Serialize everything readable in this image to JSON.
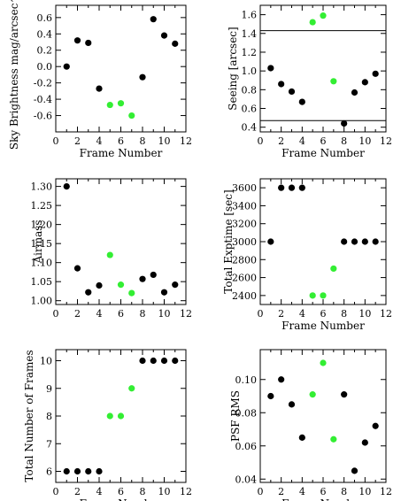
{
  "chart_data": [
    {
      "type": "scatter",
      "xlabel": "Frame Number",
      "ylabel": "Sky Brightness mag/arcsec^2",
      "xlim": [
        0,
        12
      ],
      "ylim": [
        -0.8,
        0.75
      ],
      "xticks": [
        0,
        2,
        4,
        6,
        8,
        10,
        12
      ],
      "yticks": [
        -0.6,
        -0.4,
        -0.2,
        0.0,
        0.2,
        0.4,
        0.6
      ],
      "ytick_labels": [
        "-0.6",
        "-0.4",
        "-0.2",
        "0.0",
        "0.2",
        "0.4",
        "0.6"
      ],
      "x": [
        1,
        2,
        3,
        4,
        5,
        6,
        7,
        8,
        9,
        10,
        11
      ],
      "y": [
        0.0,
        0.32,
        0.29,
        -0.27,
        -0.47,
        -0.45,
        -0.6,
        -0.13,
        0.58,
        0.38,
        0.28
      ],
      "colors": [
        "#000000",
        "#000000",
        "#000000",
        "#000000",
        "#33ee33",
        "#33ee33",
        "#33ee33",
        "#000000",
        "#000000",
        "#000000",
        "#000000"
      ],
      "hlines": [],
      "grid": false
    },
    {
      "type": "scatter",
      "xlabel": "Frame Number",
      "ylabel": "Seeing [arcsec]",
      "xlim": [
        0,
        12
      ],
      "ylim": [
        0.35,
        1.7
      ],
      "xticks": [
        0,
        2,
        4,
        6,
        8,
        10,
        12
      ],
      "yticks": [
        0.4,
        0.6,
        0.8,
        1.0,
        1.2,
        1.4,
        1.6
      ],
      "ytick_labels": [
        "0.4",
        "0.6",
        "0.8",
        "1.0",
        "1.2",
        "1.4",
        "1.6"
      ],
      "x": [
        1,
        2,
        3,
        4,
        5,
        6,
        7,
        8,
        9,
        10,
        11
      ],
      "y": [
        1.03,
        0.86,
        0.78,
        0.67,
        1.52,
        1.59,
        0.89,
        0.44,
        0.77,
        0.88,
        0.97
      ],
      "colors": [
        "#000000",
        "#000000",
        "#000000",
        "#000000",
        "#33ee33",
        "#33ee33",
        "#33ee33",
        "#000000",
        "#000000",
        "#000000",
        "#000000"
      ],
      "hlines": [
        1.43,
        0.47
      ],
      "grid": false
    },
    {
      "type": "scatter",
      "xlabel": "",
      "ylabel": "Airmass",
      "xlim": [
        0,
        12
      ],
      "ylim": [
        0.99,
        1.32
      ],
      "xticks": [
        0,
        2,
        4,
        6,
        8,
        10,
        12
      ],
      "yticks": [
        1.0,
        1.05,
        1.1,
        1.15,
        1.2,
        1.25,
        1.3
      ],
      "ytick_labels": [
        "1.00",
        "1.05",
        "1.10",
        "1.15",
        "1.20",
        "1.25",
        "1.30"
      ],
      "x": [
        1,
        2,
        3,
        4,
        5,
        6,
        7,
        8,
        9,
        10,
        11
      ],
      "y": [
        1.3,
        1.085,
        1.022,
        1.04,
        1.12,
        1.042,
        1.02,
        1.057,
        1.068,
        1.022,
        1.042
      ],
      "colors": [
        "#000000",
        "#000000",
        "#000000",
        "#000000",
        "#33ee33",
        "#33ee33",
        "#33ee33",
        "#000000",
        "#000000",
        "#000000",
        "#000000"
      ],
      "hlines": [],
      "grid": false
    },
    {
      "type": "scatter",
      "xlabel": "Frame Number",
      "ylabel": "Total Exptime [sec]",
      "xlim": [
        0,
        12
      ],
      "ylim": [
        2300,
        3700
      ],
      "xticks": [
        0,
        2,
        4,
        6,
        8,
        10,
        12
      ],
      "yticks": [
        2400,
        2600,
        2800,
        3000,
        3200,
        3400,
        3600
      ],
      "ytick_labels": [
        "2400",
        "2600",
        "2800",
        "3000",
        "3200",
        "3400",
        "3600"
      ],
      "x": [
        1,
        2,
        3,
        4,
        5,
        6,
        7,
        8,
        9,
        10,
        11
      ],
      "y": [
        3000,
        3600,
        3600,
        3600,
        2400,
        2400,
        2700,
        3000,
        3000,
        3000,
        3000
      ],
      "colors": [
        "#000000",
        "#000000",
        "#000000",
        "#000000",
        "#33ee33",
        "#33ee33",
        "#33ee33",
        "#000000",
        "#000000",
        "#000000",
        "#000000"
      ],
      "hlines": [],
      "grid": false
    },
    {
      "type": "scatter",
      "xlabel": "Frame Number",
      "ylabel": "Total Number of Frames",
      "xlim": [
        0,
        12
      ],
      "ylim": [
        5.6,
        10.4
      ],
      "xticks": [
        0,
        2,
        4,
        6,
        8,
        10,
        12
      ],
      "yticks": [
        6,
        7,
        8,
        9,
        10
      ],
      "ytick_labels": [
        "6",
        "7",
        "8",
        "9",
        "10"
      ],
      "x": [
        1,
        2,
        3,
        4,
        5,
        6,
        7,
        8,
        9,
        10,
        11
      ],
      "y": [
        6,
        6,
        6,
        6,
        8,
        8,
        9,
        10,
        10,
        10,
        10
      ],
      "colors": [
        "#000000",
        "#000000",
        "#000000",
        "#000000",
        "#33ee33",
        "#33ee33",
        "#33ee33",
        "#000000",
        "#000000",
        "#000000",
        "#000000"
      ],
      "hlines": [],
      "grid": false
    },
    {
      "type": "scatter",
      "xlabel": "Frame Number",
      "ylabel": "PSF RMS",
      "xlim": [
        0,
        12
      ],
      "ylim": [
        0.038,
        0.118
      ],
      "xticks": [
        0,
        2,
        4,
        6,
        8,
        10,
        12
      ],
      "yticks": [
        0.04,
        0.06,
        0.08,
        0.1
      ],
      "ytick_labels": [
        "0.04",
        "0.06",
        "0.08",
        "0.10"
      ],
      "x": [
        1,
        2,
        3,
        4,
        5,
        6,
        7,
        8,
        9,
        10,
        11
      ],
      "y": [
        0.09,
        0.1,
        0.085,
        0.065,
        0.091,
        0.11,
        0.064,
        0.091,
        0.045,
        0.062,
        0.072
      ],
      "colors": [
        "#000000",
        "#000000",
        "#000000",
        "#000000",
        "#33ee33",
        "#33ee33",
        "#33ee33",
        "#000000",
        "#000000",
        "#000000",
        "#000000"
      ],
      "hlines": [],
      "grid": false
    }
  ]
}
